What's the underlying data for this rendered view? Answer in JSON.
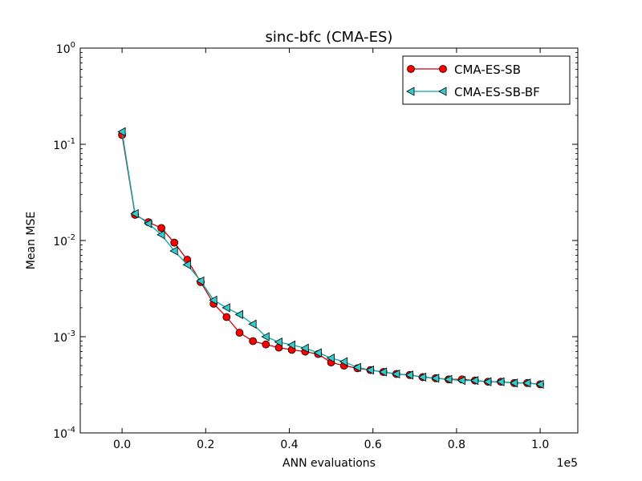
{
  "chart_data": {
    "type": "line",
    "title": "sinc-bfc (CMA-ES)",
    "xlabel": "ANN evaluations",
    "ylabel": "Mean MSE",
    "x_offset_text": "1e5",
    "xscale": "linear",
    "yscale": "log",
    "xlim": [
      -0.1,
      1.09
    ],
    "ylim": [
      0.0001,
      1
    ],
    "x_ticks": [
      {
        "value": 0.0,
        "label": "0.0"
      },
      {
        "value": 0.2,
        "label": "0.2"
      },
      {
        "value": 0.4,
        "label": "0.4"
      },
      {
        "value": 0.6,
        "label": "0.6"
      },
      {
        "value": 0.8,
        "label": "0.8"
      },
      {
        "value": 1.0,
        "label": "1.0"
      }
    ],
    "y_ticks": [
      {
        "value": 1,
        "base": "10",
        "exp": "0"
      },
      {
        "value": 0.1,
        "base": "10",
        "exp": "-1"
      },
      {
        "value": 0.01,
        "base": "10",
        "exp": "-2"
      },
      {
        "value": 0.001,
        "base": "10",
        "exp": "-3"
      },
      {
        "value": 0.0001,
        "base": "10",
        "exp": "-4"
      }
    ],
    "legend_position": "top-right",
    "series": [
      {
        "name": "CMA-ES-SB",
        "color": "#cc0000",
        "marker_fill": "#ff0000",
        "marker": "circle",
        "x": [
          0.0,
          0.031,
          0.063,
          0.094,
          0.125,
          0.156,
          0.188,
          0.219,
          0.25,
          0.281,
          0.313,
          0.344,
          0.375,
          0.406,
          0.438,
          0.469,
          0.5,
          0.531,
          0.563,
          0.594,
          0.625,
          0.656,
          0.688,
          0.719,
          0.75,
          0.781,
          0.813,
          0.844,
          0.875,
          0.906,
          0.938,
          0.969,
          1.0
        ],
        "y": [
          0.125,
          0.0185,
          0.0155,
          0.0135,
          0.0095,
          0.0063,
          0.0037,
          0.0022,
          0.0016,
          0.0011,
          0.0009,
          0.00083,
          0.00077,
          0.00073,
          0.0007,
          0.00066,
          0.00054,
          0.0005,
          0.00047,
          0.00045,
          0.00043,
          0.00041,
          0.0004,
          0.00038,
          0.00037,
          0.00036,
          0.00036,
          0.00035,
          0.00034,
          0.00034,
          0.00033,
          0.00033,
          0.00032
        ]
      },
      {
        "name": "CMA-ES-SB-BF",
        "color": "#00aaaa",
        "marker_fill": "#33cccc",
        "marker": "triangle-left",
        "x": [
          0.0,
          0.031,
          0.063,
          0.094,
          0.125,
          0.156,
          0.188,
          0.219,
          0.25,
          0.281,
          0.313,
          0.344,
          0.375,
          0.406,
          0.438,
          0.469,
          0.5,
          0.531,
          0.563,
          0.594,
          0.625,
          0.656,
          0.688,
          0.719,
          0.75,
          0.781,
          0.813,
          0.844,
          0.875,
          0.906,
          0.938,
          0.969,
          1.0
        ],
        "y": [
          0.135,
          0.019,
          0.015,
          0.0115,
          0.0078,
          0.0056,
          0.0038,
          0.0024,
          0.002,
          0.0017,
          0.00135,
          0.001,
          0.00088,
          0.00082,
          0.00076,
          0.00068,
          0.0006,
          0.00055,
          0.00048,
          0.00045,
          0.00043,
          0.00041,
          0.0004,
          0.00038,
          0.00037,
          0.00036,
          0.00035,
          0.00035,
          0.00034,
          0.00034,
          0.00033,
          0.00033,
          0.00032
        ]
      }
    ]
  }
}
